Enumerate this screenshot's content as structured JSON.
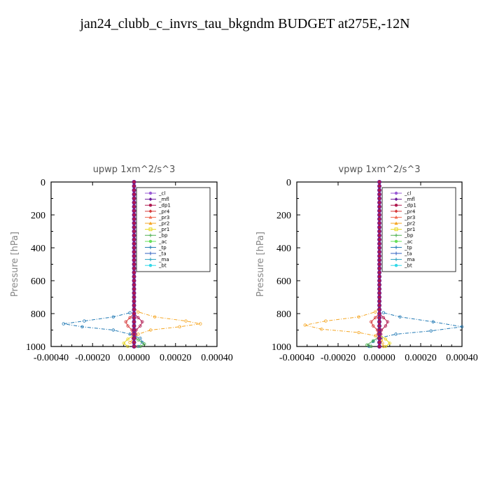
{
  "title": "jan24_clubb_c_invrs_tau_bkgndm  BUDGET at275E,-12N",
  "legend_entries": [
    "_cl",
    "_mfl",
    "_dp1",
    "_pr4",
    "_pr3",
    "_pr2",
    "_pr1",
    "_bp",
    "_ac",
    "_tp",
    "_ta",
    "_ma",
    "_bt"
  ],
  "colors": {
    "_cl": "#9a5bd6",
    "_mfl": "#6a1b9a",
    "_dp1": "#b0174e",
    "_pr4": "#d63a3a",
    "_pr3": "#f06a50",
    "_pr2": "#f5a623",
    "_pr1": "#e8d820",
    "_bp": "#4caf50",
    "_ac": "#66e05a",
    "_tp": "#1f78b4",
    "_ta": "#3060c0",
    "_ma": "#2aa0c0",
    "_bt": "#30d8e8"
  },
  "chart_data": [
    {
      "type": "line",
      "title": "upwp   1xm^2/s^3",
      "ylabel": "Pressure [hPa]",
      "xlabel": "",
      "xlim": [
        -0.0004,
        0.0004
      ],
      "ylim": [
        1000,
        0
      ],
      "xticks": [
        "-0.00040",
        "-0.00020",
        "0.00000",
        "0.00020",
        "0.00040"
      ],
      "yticks": [
        "0",
        "200",
        "400",
        "600",
        "800",
        "1000"
      ],
      "legend_position": "upper-right",
      "series": [
        {
          "name": "_pr2",
          "points": [
            [
              0,
              0
            ],
            [
              0,
              760
            ],
            [
              2e-05,
              790
            ],
            [
              0.0001,
              820
            ],
            [
              0.00025,
              845
            ],
            [
              0.00032,
              862
            ],
            [
              0.00022,
              880
            ],
            [
              8e-05,
              900
            ],
            [
              2e-05,
              925
            ],
            [
              0,
              950
            ],
            [
              -2e-05,
              975
            ],
            [
              1e-05,
              1000
            ]
          ]
        },
        {
          "name": "_tp",
          "points": [
            [
              0,
              0
            ],
            [
              0,
              770
            ],
            [
              -2e-05,
              795
            ],
            [
              -0.0001,
              820
            ],
            [
              -0.00024,
              845
            ],
            [
              -0.00034,
              862
            ],
            [
              -0.00025,
              880
            ],
            [
              -0.0001,
              900
            ],
            [
              -2e-05,
              925
            ],
            [
              3e-05,
              950
            ],
            [
              4e-05,
              975
            ],
            [
              2e-05,
              1000
            ]
          ]
        },
        {
          "name": "_pr4",
          "points": [
            [
              0,
              0
            ],
            [
              0,
              800
            ],
            [
              -2e-05,
              825
            ],
            [
              -4e-05,
              850
            ],
            [
              -3e-05,
              875
            ],
            [
              -1e-05,
              900
            ],
            [
              0,
              1000
            ]
          ]
        },
        {
          "name": "_dp1",
          "points": [
            [
              0,
              0
            ],
            [
              0,
              800
            ],
            [
              2e-05,
              825
            ],
            [
              4e-05,
              850
            ],
            [
              3e-05,
              875
            ],
            [
              1e-05,
              900
            ],
            [
              0,
              1000
            ]
          ]
        },
        {
          "name": "_bp",
          "points": [
            [
              0,
              0
            ],
            [
              0,
              940
            ],
            [
              2e-05,
              960
            ],
            [
              5e-05,
              985
            ],
            [
              3e-05,
              1000
            ]
          ]
        },
        {
          "name": "_pr1",
          "points": [
            [
              0,
              0
            ],
            [
              0,
              930
            ],
            [
              -3e-05,
              955
            ],
            [
              -5e-05,
              980
            ],
            [
              -3e-05,
              1000
            ]
          ]
        },
        {
          "name": "_mfl",
          "points": [
            [
              0,
              0
            ],
            [
              0,
              1000
            ]
          ]
        }
      ]
    },
    {
      "type": "line",
      "title": "vpwp   1xm^2/s^3",
      "ylabel": "Pressure [hPa]",
      "xlabel": "",
      "xlim": [
        -0.0004,
        0.0004
      ],
      "ylim": [
        1000,
        0
      ],
      "xticks": [
        "-0.00040",
        "-0.00020",
        "0.00000",
        "0.00020",
        "0.00040"
      ],
      "yticks": [
        "0",
        "200",
        "400",
        "600",
        "800",
        "1000"
      ],
      "legend_position": "upper-right",
      "series": [
        {
          "name": "_pr2",
          "points": [
            [
              0,
              0
            ],
            [
              0,
              760
            ],
            [
              -2e-05,
              790
            ],
            [
              -0.0001,
              820
            ],
            [
              -0.00026,
              845
            ],
            [
              -0.00036,
              870
            ],
            [
              -0.00028,
              895
            ],
            [
              -0.0001,
              915
            ],
            [
              -2e-05,
              935
            ],
            [
              1e-05,
              960
            ],
            [
              2e-05,
              1000
            ]
          ]
        },
        {
          "name": "_tp",
          "points": [
            [
              0,
              0
            ],
            [
              0,
              770
            ],
            [
              2e-05,
              795
            ],
            [
              0.0001,
              820
            ],
            [
              0.00026,
              850
            ],
            [
              0.0004,
              880
            ],
            [
              0.00025,
              905
            ],
            [
              8e-05,
              925
            ],
            [
              1e-05,
              945
            ],
            [
              -3e-05,
              970
            ],
            [
              -5e-05,
              1000
            ]
          ]
        },
        {
          "name": "_pr4",
          "points": [
            [
              0,
              0
            ],
            [
              0,
              800
            ],
            [
              -2e-05,
              825
            ],
            [
              -4e-05,
              850
            ],
            [
              -3e-05,
              875
            ],
            [
              -1e-05,
              900
            ],
            [
              0,
              1000
            ]
          ]
        },
        {
          "name": "_dp1",
          "points": [
            [
              0,
              0
            ],
            [
              0,
              800
            ],
            [
              2e-05,
              825
            ],
            [
              4e-05,
              850
            ],
            [
              3e-05,
              875
            ],
            [
              1e-05,
              900
            ],
            [
              0,
              1000
            ]
          ]
        },
        {
          "name": "_bp",
          "points": [
            [
              0,
              0
            ],
            [
              0,
              940
            ],
            [
              -3e-05,
              965
            ],
            [
              -6e-05,
              990
            ],
            [
              -4e-05,
              1000
            ]
          ]
        },
        {
          "name": "_pr1",
          "points": [
            [
              0,
              0
            ],
            [
              0,
              930
            ],
            [
              3e-05,
              955
            ],
            [
              5e-05,
              980
            ],
            [
              3e-05,
              1000
            ]
          ]
        },
        {
          "name": "_mfl",
          "points": [
            [
              0,
              0
            ],
            [
              0,
              1000
            ]
          ]
        }
      ]
    }
  ]
}
